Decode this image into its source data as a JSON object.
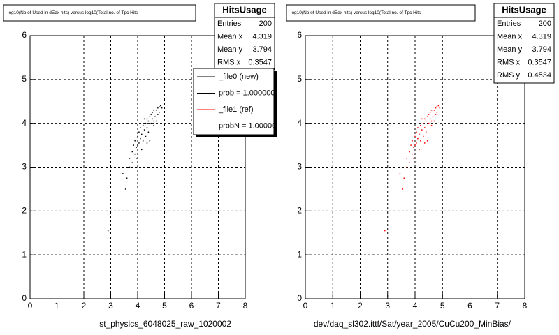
{
  "chart_data": [
    {
      "type": "scatter",
      "title": "log10(No.of Used in dEdx hits) versus log10(Total no. of Tpc Hits",
      "xlabel": "st_physics_6048025_raw_1020002",
      "color": "#000000",
      "xlim": [
        0,
        8
      ],
      "ylim": [
        0,
        6
      ],
      "xticks": [
        0,
        1,
        2,
        3,
        4,
        5,
        6,
        7,
        8
      ],
      "yticks": [
        0,
        1,
        2,
        3,
        4,
        5,
        6
      ],
      "grid": true,
      "stats": {
        "title": "HitsUsage",
        "rows": [
          {
            "label": "Entries",
            "value": 200
          },
          {
            "label": "Mean x",
            "value": 4.319
          },
          {
            "label": "Mean y",
            "value": 3.794
          },
          {
            "label": "RMS x",
            "value": 0.3547
          }
        ]
      },
      "legend": [
        {
          "name": "_file0 (new)",
          "color": "#000000"
        },
        {
          "name": "prob = 1.000000",
          "color": "#000000"
        },
        {
          "name": "_file1 (ref)",
          "color": "#ff0000"
        },
        {
          "name": "probN = 1.000000",
          "color": "#ff0000"
        }
      ],
      "x": [
        3.55,
        3.6,
        3.45,
        2.9,
        3.7,
        3.7,
        3.8,
        3.8,
        3.85,
        3.9,
        3.9,
        3.95,
        4.0,
        4.0,
        4.05,
        4.05,
        4.1,
        4.1,
        4.15,
        4.2,
        4.2,
        4.25,
        4.3,
        4.3,
        4.35,
        4.35,
        4.4,
        4.4,
        4.45,
        4.5,
        4.5,
        4.55,
        4.55,
        4.6,
        4.6,
        4.65,
        4.7,
        4.7,
        4.75,
        4.8,
        4.85,
        4.9,
        4.45,
        4.15,
        3.95,
        4.6,
        4.25,
        4.75,
        4.35,
        4.8
      ],
      "y": [
        2.5,
        2.75,
        2.85,
        1.55,
        3.0,
        3.2,
        3.1,
        3.35,
        3.5,
        3.3,
        3.6,
        3.45,
        3.7,
        3.5,
        3.55,
        3.8,
        3.65,
        3.9,
        3.75,
        3.95,
        3.6,
        3.85,
        4.0,
        3.7,
        4.1,
        3.9,
        4.05,
        3.8,
        4.15,
        4.0,
        4.2,
        4.1,
        4.25,
        3.95,
        4.3,
        4.15,
        4.3,
        4.05,
        4.35,
        4.25,
        4.4,
        4.35,
        3.6,
        3.4,
        3.2,
        4.05,
        4.1,
        4.2,
        3.55,
        4.38
      ]
    },
    {
      "type": "scatter",
      "title": "log10(No.of Used in dEdx hits) versus log10(Total no. of Tpc Hits",
      "xlabel": "dev/daq_sl302.ittf/Sat/year_2005/CuCu200_MinBias/",
      "color": "#ff0000",
      "xlim": [
        0,
        8
      ],
      "ylim": [
        0,
        6
      ],
      "xticks": [
        0,
        1,
        2,
        3,
        4,
        5,
        6,
        7,
        8
      ],
      "yticks": [
        0,
        1,
        2,
        3,
        4,
        5,
        6
      ],
      "grid": true,
      "stats": {
        "title": "HitsUsage",
        "rows": [
          {
            "label": "Entries",
            "value": 200
          },
          {
            "label": "Mean x",
            "value": 4.319
          },
          {
            "label": "Mean y",
            "value": 3.794
          },
          {
            "label": "RMS x",
            "value": 0.3547
          },
          {
            "label": "RMS y",
            "value": 0.4534
          }
        ]
      },
      "x": [
        3.55,
        3.6,
        3.45,
        2.9,
        3.7,
        3.7,
        3.8,
        3.8,
        3.85,
        3.9,
        3.9,
        3.95,
        4.0,
        4.0,
        4.05,
        4.05,
        4.1,
        4.1,
        4.15,
        4.2,
        4.2,
        4.25,
        4.3,
        4.3,
        4.35,
        4.35,
        4.4,
        4.4,
        4.45,
        4.5,
        4.5,
        4.55,
        4.55,
        4.6,
        4.6,
        4.65,
        4.7,
        4.7,
        4.75,
        4.8,
        4.85,
        4.9,
        4.45,
        4.15,
        3.95,
        4.6,
        4.25,
        4.75,
        4.35,
        4.8
      ],
      "y": [
        2.5,
        2.75,
        2.85,
        1.55,
        3.0,
        3.2,
        3.1,
        3.35,
        3.5,
        3.3,
        3.6,
        3.45,
        3.7,
        3.5,
        3.55,
        3.8,
        3.65,
        3.9,
        3.75,
        3.95,
        3.6,
        3.85,
        4.0,
        3.7,
        4.1,
        3.9,
        4.05,
        3.8,
        4.15,
        4.0,
        4.2,
        4.1,
        4.25,
        3.95,
        4.3,
        4.15,
        4.3,
        4.05,
        4.35,
        4.25,
        4.4,
        4.35,
        3.6,
        3.4,
        3.2,
        4.05,
        4.1,
        4.2,
        3.55,
        4.38
      ]
    }
  ]
}
